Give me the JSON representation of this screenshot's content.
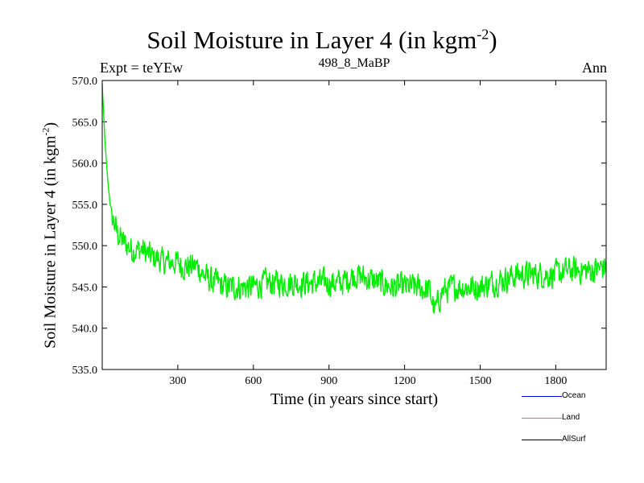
{
  "header": {
    "title_main": "Soil Moisture in Layer 4 (in kgm",
    "title_exp": "-2",
    "title_close": ")",
    "expt": "Expt = teYEw",
    "subtitle": "498_8_MaBP",
    "period": "Ann"
  },
  "axes": {
    "ylabel_main": "Soil Moisture in Layer 4 (in kgm",
    "ylabel_exp": "-2",
    "ylabel_close": ")",
    "xlabel": "Time (in years since start)"
  },
  "legend": [
    {
      "label": "Ocean",
      "color": "#0000ff"
    },
    {
      "label": "Land",
      "color": "#00ee00"
    },
    {
      "label": "AllSurf",
      "color": "#000000"
    }
  ],
  "chart_data": {
    "type": "line",
    "title": "Soil Moisture in Layer 4 (in kgm-2)",
    "xlabel": "Time (in years since start)",
    "ylabel": "Soil Moisture in Layer 4 (in kgm-2)",
    "xlim": [
      0,
      2000
    ],
    "ylim": [
      535.0,
      570.0
    ],
    "xticks": [
      300,
      600,
      900,
      1200,
      1500,
      1800
    ],
    "yticks": [
      "535.0",
      "540.0",
      "545.0",
      "550.0",
      "555.0",
      "560.0",
      "565.0",
      "570.0"
    ],
    "series": [
      {
        "name": "Land",
        "color": "#00ee00",
        "x": [
          0,
          10,
          20,
          30,
          40,
          50,
          60,
          70,
          80,
          100,
          120,
          140,
          160,
          180,
          200,
          220,
          240,
          260,
          280,
          300,
          320,
          340,
          360,
          380,
          400,
          420,
          440,
          460,
          480,
          500,
          550,
          600,
          650,
          700,
          750,
          800,
          850,
          900,
          950,
          1000,
          1050,
          1100,
          1150,
          1200,
          1250,
          1300,
          1320,
          1350,
          1400,
          1450,
          1500,
          1550,
          1600,
          1650,
          1700,
          1750,
          1800,
          1850,
          1900,
          1950,
          2000
        ],
        "y": [
          569.5,
          563.0,
          558.5,
          555.5,
          553.5,
          552.5,
          551.5,
          551.0,
          550.5,
          550.0,
          549.5,
          549.5,
          549.5,
          549.0,
          548.5,
          548.5,
          548.0,
          548.0,
          548.0,
          548.0,
          547.5,
          547.5,
          547.5,
          547.5,
          546.5,
          546.0,
          545.5,
          545.5,
          545.0,
          545.0,
          545.0,
          545.0,
          545.5,
          545.5,
          545.5,
          545.5,
          545.5,
          545.5,
          545.5,
          546.5,
          546.0,
          545.5,
          545.0,
          545.0,
          545.0,
          544.5,
          542.0,
          544.5,
          545.0,
          545.0,
          545.0,
          545.5,
          546.0,
          546.5,
          546.5,
          546.5,
          546.5,
          547.0,
          547.0,
          547.0,
          547.5
        ]
      }
    ]
  }
}
